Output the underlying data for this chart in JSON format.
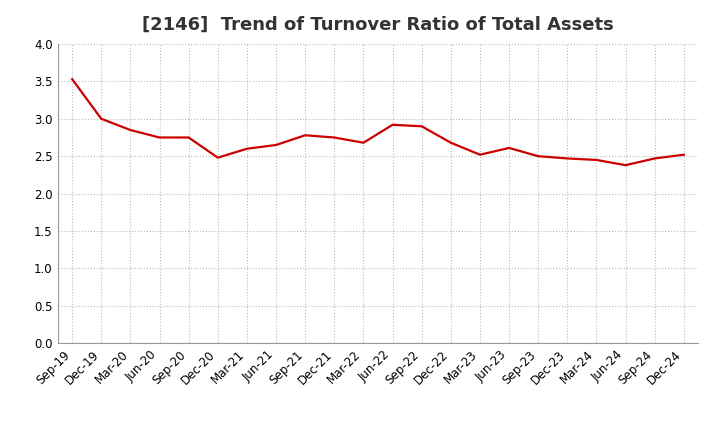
{
  "title": "[2146]  Trend of Turnover Ratio of Total Assets",
  "x_labels": [
    "Sep-19",
    "Dec-19",
    "Mar-20",
    "Jun-20",
    "Sep-20",
    "Dec-20",
    "Mar-21",
    "Jun-21",
    "Sep-21",
    "Dec-21",
    "Mar-22",
    "Jun-22",
    "Sep-22",
    "Dec-22",
    "Mar-23",
    "Jun-23",
    "Sep-23",
    "Dec-23",
    "Mar-24",
    "Jun-24",
    "Sep-24",
    "Dec-24"
  ],
  "y_values": [
    3.53,
    3.0,
    2.85,
    2.75,
    2.75,
    2.48,
    2.6,
    2.65,
    2.78,
    2.75,
    2.68,
    2.92,
    2.9,
    2.68,
    2.52,
    2.61,
    2.5,
    2.47,
    2.45,
    2.38,
    2.47,
    2.52
  ],
  "line_color": "#cc0000",
  "line_width": 1.6,
  "ylim": [
    0.0,
    4.0
  ],
  "yticks": [
    0.0,
    0.5,
    1.0,
    1.5,
    2.0,
    2.5,
    3.0,
    3.5,
    4.0
  ],
  "grid_color": "#bbbbbb",
  "background_color": "#ffffff",
  "title_fontsize": 13,
  "tick_fontsize": 8.5,
  "title_color": "#333333"
}
